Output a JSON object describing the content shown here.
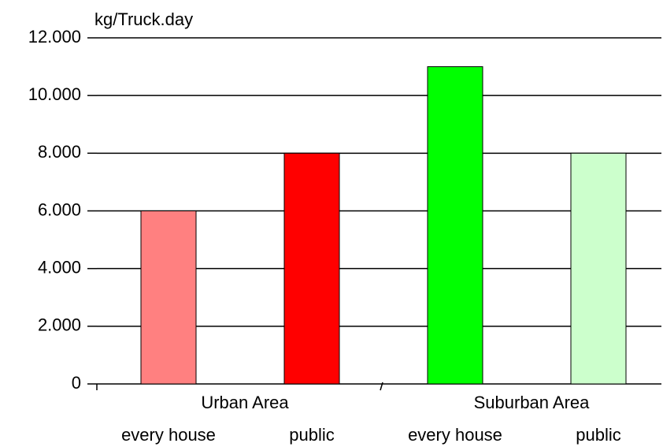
{
  "chart_data": {
    "type": "bar",
    "y_label": "kg/Truck.day",
    "categories": [
      "every house",
      "public",
      "every house",
      "public"
    ],
    "groups": [
      "Urban Area",
      "Suburban Area"
    ],
    "values": [
      6000,
      8000,
      11000,
      8000
    ],
    "colors": [
      "#ff8080",
      "#ff0000",
      "#00ff00",
      "#ccffcc"
    ],
    "ylim": [
      0,
      12000
    ],
    "yticks": [
      0,
      {
        "value": 2000,
        "label": "2.000"
      },
      {
        "value": 4000,
        "label": "4.000"
      },
      {
        "value": 6000,
        "label": "6.000"
      },
      {
        "value": 8000,
        "label": "8.000"
      },
      {
        "value": 10000,
        "label": "10.000"
      },
      {
        "value": 12000,
        "label": "12.000"
      }
    ],
    "grid": true
  }
}
